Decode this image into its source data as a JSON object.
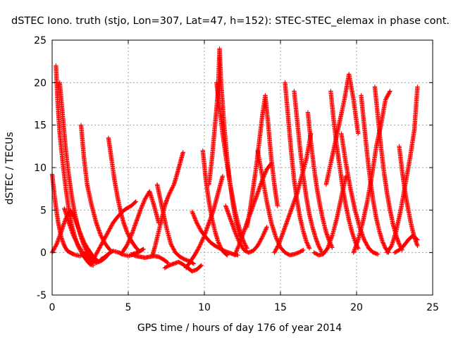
{
  "chart_data": {
    "type": "scatter",
    "title": "dSTEC Iono. truth (stjo, Lon=307, Lat=47, h=152): STEC-STEC_elemax in phase cont.",
    "xlabel": "GPS time / hours of day 176 of year 2014",
    "ylabel": "dSTEC  / TECUs",
    "xlim": [
      0,
      25
    ],
    "ylim": [
      -5,
      25
    ],
    "xticks": [
      0,
      5,
      10,
      15,
      20,
      25
    ],
    "yticks": [
      -5,
      0,
      5,
      10,
      15,
      20,
      25
    ],
    "x_tick_labels": [
      "0",
      "5",
      "10",
      "15",
      "20",
      "25"
    ],
    "y_tick_labels": [
      "-5",
      "0",
      "5",
      "10",
      "15",
      "20",
      "25"
    ],
    "grid": true,
    "marker": "+",
    "color": "#ff0000",
    "series": [
      {
        "x": [
          0.0,
          0.2,
          0.4,
          0.6,
          0.8,
          1.0,
          1.2,
          1.4,
          1.6,
          1.8,
          2.0,
          2.2,
          2.4
        ],
        "values": [
          9.2,
          6.0,
          3.5,
          1.8,
          0.8,
          0.2,
          0.0,
          -0.2,
          -0.3,
          -0.4,
          -0.3,
          -0.1,
          0.0
        ]
      },
      {
        "x": [
          0.25,
          0.35,
          0.5,
          0.7,
          0.9,
          1.1,
          1.3,
          1.5,
          1.7,
          1.9,
          2.1,
          2.3,
          2.5,
          2.7
        ],
        "values": [
          22.0,
          18.0,
          14.0,
          10.5,
          7.5,
          5.0,
          3.2,
          1.8,
          0.8,
          0.1,
          -0.5,
          -1.0,
          -1.4,
          -1.5
        ]
      },
      {
        "x": [
          0.5,
          0.7,
          0.9,
          1.1,
          1.3,
          1.5,
          1.7,
          1.9,
          2.1,
          2.3,
          2.5,
          2.7,
          2.9
        ],
        "values": [
          20.0,
          16.0,
          12.0,
          9.0,
          6.5,
          4.5,
          3.0,
          1.8,
          0.8,
          0.0,
          -0.5,
          -0.8,
          -1.0
        ]
      },
      {
        "x": [
          0.0,
          0.3,
          0.6,
          0.9,
          1.2,
          1.5,
          1.8,
          2.1,
          2.4,
          2.7,
          3.0
        ],
        "values": [
          0.0,
          1.0,
          2.5,
          4.0,
          5.0,
          4.0,
          2.5,
          1.2,
          0.3,
          -0.5,
          -1.0
        ]
      },
      {
        "x": [
          0.8,
          1.1,
          1.4,
          1.7,
          2.0,
          2.3,
          2.6,
          2.9,
          3.2,
          3.5,
          3.8
        ],
        "values": [
          5.2,
          3.5,
          2.0,
          0.9,
          0.0,
          -0.6,
          -1.0,
          -1.2,
          -1.0,
          -0.6,
          0.0
        ]
      },
      {
        "x": [
          1.9,
          2.1,
          2.3,
          2.6,
          2.9,
          3.2,
          3.5,
          3.8
        ],
        "values": [
          15.0,
          11.0,
          8.0,
          5.5,
          3.5,
          2.0,
          1.0,
          0.3
        ]
      },
      {
        "x": [
          2.5,
          2.8,
          3.1,
          3.4,
          3.7,
          4.0,
          4.3,
          4.6,
          4.9,
          5.2,
          5.5
        ],
        "values": [
          -1.4,
          -0.5,
          0.5,
          1.5,
          2.5,
          3.5,
          4.2,
          4.8,
          5.2,
          5.5,
          6.0
        ]
      },
      {
        "x": [
          3.7,
          3.9,
          4.1,
          4.3,
          4.5,
          4.7,
          4.9,
          5.1,
          5.3,
          5.5,
          5.7
        ],
        "values": [
          13.5,
          11.0,
          8.5,
          6.5,
          4.8,
          3.5,
          2.5,
          1.7,
          1.1,
          0.6,
          0.2
        ]
      },
      {
        "x": [
          3.2,
          3.4,
          3.6,
          3.8,
          4.0,
          4.2,
          4.4,
          4.6,
          4.8,
          5.0,
          5.2,
          5.4,
          5.6,
          5.8,
          6.0
        ],
        "values": [
          -0.8,
          -0.6,
          -0.3,
          0.0,
          0.2,
          0.1,
          0.0,
          -0.2,
          -0.3,
          -0.4,
          -0.3,
          -0.1,
          0.0,
          0.2,
          0.4
        ]
      },
      {
        "x": [
          4.6,
          4.9,
          5.2,
          5.5,
          5.8,
          6.1,
          6.4,
          6.7,
          7.0
        ],
        "values": [
          0.0,
          0.8,
          2.0,
          3.5,
          5.0,
          6.3,
          7.2,
          5.5,
          3.5
        ]
      },
      {
        "x": [
          5.2,
          5.5,
          5.8,
          6.1,
          6.4,
          6.7,
          7.0,
          7.3,
          7.6
        ],
        "values": [
          -0.2,
          -0.4,
          -0.5,
          -0.6,
          -0.5,
          -0.4,
          -0.5,
          -0.8,
          -1.2
        ]
      },
      {
        "x": [
          6.6,
          6.8,
          7.0,
          7.2,
          7.4,
          7.6,
          7.8,
          8.0,
          8.2,
          8.4,
          8.6
        ],
        "values": [
          -0.3,
          1.0,
          2.5,
          4.0,
          5.5,
          6.5,
          7.3,
          8.0,
          9.2,
          10.5,
          11.8
        ]
      },
      {
        "x": [
          6.9,
          7.2,
          7.5,
          7.8,
          8.1,
          8.4,
          8.7,
          9.0,
          9.3
        ],
        "values": [
          8.0,
          5.5,
          3.0,
          1.0,
          0.0,
          -0.5,
          -0.8,
          -1.0,
          -1.3
        ]
      },
      {
        "x": [
          7.4,
          7.7,
          8.0,
          8.3,
          8.6,
          8.9,
          9.2,
          9.5,
          9.8
        ],
        "values": [
          -1.8,
          -1.5,
          -1.3,
          -1.1,
          -1.4,
          -1.8,
          -2.2,
          -2.0,
          -1.5
        ]
      },
      {
        "x": [
          8.8,
          9.1,
          9.4,
          9.7,
          10.0,
          10.3,
          10.6,
          10.9,
          11.2
        ],
        "values": [
          -1.8,
          -1.0,
          -0.2,
          0.8,
          2.0,
          3.5,
          5.0,
          7.0,
          9.0
        ]
      },
      {
        "x": [
          9.2,
          9.5,
          9.8,
          10.1,
          10.4,
          10.7,
          11.0,
          11.3,
          11.6,
          11.9,
          12.2
        ],
        "values": [
          4.8,
          3.5,
          2.5,
          1.8,
          1.2,
          0.8,
          0.5,
          0.2,
          0.0,
          -0.2,
          -0.3
        ]
      },
      {
        "x": [
          9.9,
          10.1,
          10.3,
          10.5,
          10.7,
          10.9,
          11.1,
          11.3,
          11.5
        ],
        "values": [
          12.0,
          8.5,
          6.0,
          4.0,
          2.5,
          1.3,
          0.5,
          0.0,
          -0.3
        ]
      },
      {
        "x": [
          10.3,
          10.5,
          10.7,
          10.9,
          11.0,
          11.1,
          11.3,
          11.5,
          11.7,
          11.9,
          12.1,
          12.3
        ],
        "values": [
          8.0,
          11.0,
          15.0,
          19.0,
          24.0,
          20.0,
          15.0,
          11.0,
          8.0,
          5.5,
          3.5,
          2.0
        ]
      },
      {
        "x": [
          10.8,
          11.0,
          11.2,
          11.4,
          11.6,
          11.8,
          12.0,
          12.2,
          12.4,
          12.6,
          12.8
        ],
        "values": [
          20.0,
          17.0,
          14.0,
          11.5,
          9.0,
          7.0,
          5.0,
          3.5,
          2.2,
          1.2,
          0.5
        ]
      },
      {
        "x": [
          11.4,
          11.7,
          12.0,
          12.3,
          12.6,
          12.9,
          13.2,
          13.5,
          13.8,
          14.1
        ],
        "values": [
          5.5,
          4.0,
          2.5,
          1.2,
          0.3,
          0.0,
          0.2,
          0.8,
          1.8,
          3.0
        ]
      },
      {
        "x": [
          12.0,
          12.3,
          12.6,
          12.9,
          13.2,
          13.5,
          13.8,
          14.1,
          14.4
        ],
        "values": [
          -0.3,
          1.0,
          2.5,
          4.0,
          5.5,
          7.0,
          8.5,
          9.8,
          10.5
        ]
      },
      {
        "x": [
          12.8,
          13.0,
          13.2,
          13.4,
          13.6,
          13.8,
          14.0,
          14.2,
          14.4,
          14.6,
          14.8
        ],
        "values": [
          3.0,
          5.0,
          7.5,
          10.0,
          13.0,
          16.0,
          18.5,
          15.0,
          11.0,
          8.0,
          5.5
        ]
      },
      {
        "x": [
          13.5,
          13.8,
          14.1,
          14.4,
          14.7,
          15.0,
          15.3,
          15.6,
          15.9,
          16.2,
          16.5
        ],
        "values": [
          12.0,
          9.0,
          6.0,
          3.5,
          1.8,
          0.6,
          0.0,
          -0.3,
          -0.2,
          0.0,
          0.3
        ]
      },
      {
        "x": [
          14.6,
          14.9,
          15.2,
          15.5,
          15.8,
          16.1,
          16.4,
          16.7,
          17.0
        ],
        "values": [
          0.0,
          1.0,
          2.5,
          4.0,
          5.5,
          7.0,
          9.0,
          11.0,
          14.0
        ]
      },
      {
        "x": [
          15.3,
          15.5,
          15.7,
          15.9,
          16.1,
          16.3,
          16.5,
          16.7,
          16.9
        ],
        "values": [
          20.0,
          16.0,
          12.0,
          8.5,
          6.0,
          4.0,
          2.5,
          1.3,
          0.5
        ]
      },
      {
        "x": [
          15.9,
          16.1,
          16.3,
          16.5,
          16.7,
          16.9,
          17.1,
          17.3,
          17.5,
          17.7
        ],
        "values": [
          19.0,
          15.5,
          12.0,
          9.0,
          6.5,
          4.5,
          3.0,
          1.8,
          0.8,
          0.1
        ]
      },
      {
        "x": [
          16.8,
          17.0,
          17.2,
          17.4,
          17.6,
          17.8,
          18.0,
          18.2,
          18.4
        ],
        "values": [
          16.5,
          13.0,
          10.0,
          7.5,
          5.5,
          3.8,
          2.4,
          1.4,
          0.6
        ]
      },
      {
        "x": [
          17.2,
          17.5,
          17.8,
          18.1,
          18.4,
          18.7,
          19.0,
          19.3
        ],
        "values": [
          0.0,
          -0.3,
          -0.2,
          0.5,
          2.0,
          4.0,
          6.5,
          9.0
        ]
      },
      {
        "x": [
          18.0,
          18.3,
          18.6,
          18.9,
          19.2,
          19.5,
          19.8,
          20.1
        ],
        "values": [
          8.0,
          10.5,
          13.0,
          15.5,
          18.0,
          21.0,
          18.0,
          14.0
        ]
      },
      {
        "x": [
          18.3,
          18.5,
          18.7,
          18.9,
          19.1,
          19.3,
          19.5,
          19.7,
          19.9,
          20.1
        ],
        "values": [
          19.0,
          15.5,
          12.5,
          10.0,
          7.5,
          5.5,
          3.8,
          2.4,
          1.3,
          0.5
        ]
      },
      {
        "x": [
          19.0,
          19.3,
          19.6,
          19.9,
          20.2,
          20.5,
          20.8,
          21.1,
          21.4
        ],
        "values": [
          14.0,
          10.5,
          7.5,
          5.0,
          3.0,
          1.5,
          0.5,
          0.0,
          -0.2
        ]
      },
      {
        "x": [
          19.8,
          20.1,
          20.4,
          20.7,
          21.0,
          21.3,
          21.6,
          21.9,
          22.2
        ],
        "values": [
          0.0,
          1.5,
          3.5,
          6.0,
          9.0,
          12.5,
          15.0,
          18.0,
          19.0
        ]
      },
      {
        "x": [
          20.3,
          20.5,
          20.7,
          20.9,
          21.1,
          21.3,
          21.5,
          21.7,
          21.9,
          22.1
        ],
        "values": [
          18.5,
          15.0,
          11.5,
          8.5,
          6.0,
          4.0,
          2.5,
          1.3,
          0.5,
          0.0
        ]
      },
      {
        "x": [
          21.2,
          21.4,
          21.6,
          21.8,
          22.0,
          22.2,
          22.4,
          22.6,
          22.8,
          23.0
        ],
        "values": [
          19.5,
          16.0,
          12.5,
          9.5,
          7.0,
          5.0,
          3.3,
          2.0,
          1.0,
          0.3
        ]
      },
      {
        "x": [
          22.0,
          22.3,
          22.6,
          22.9,
          23.2,
          23.5,
          23.8,
          24.0
        ],
        "values": [
          0.0,
          0.8,
          2.5,
          5.0,
          8.0,
          11.0,
          14.5,
          19.5
        ]
      },
      {
        "x": [
          22.8,
          23.0,
          23.2,
          23.4,
          23.6,
          23.8,
          24.0
        ],
        "values": [
          12.5,
          9.5,
          7.0,
          5.0,
          3.2,
          1.8,
          0.8
        ]
      },
      {
        "x": [
          22.5,
          22.8,
          23.1,
          23.4,
          23.7,
          24.0
        ],
        "values": [
          0.0,
          0.3,
          0.8,
          1.5,
          2.0,
          1.5
        ]
      }
    ]
  }
}
